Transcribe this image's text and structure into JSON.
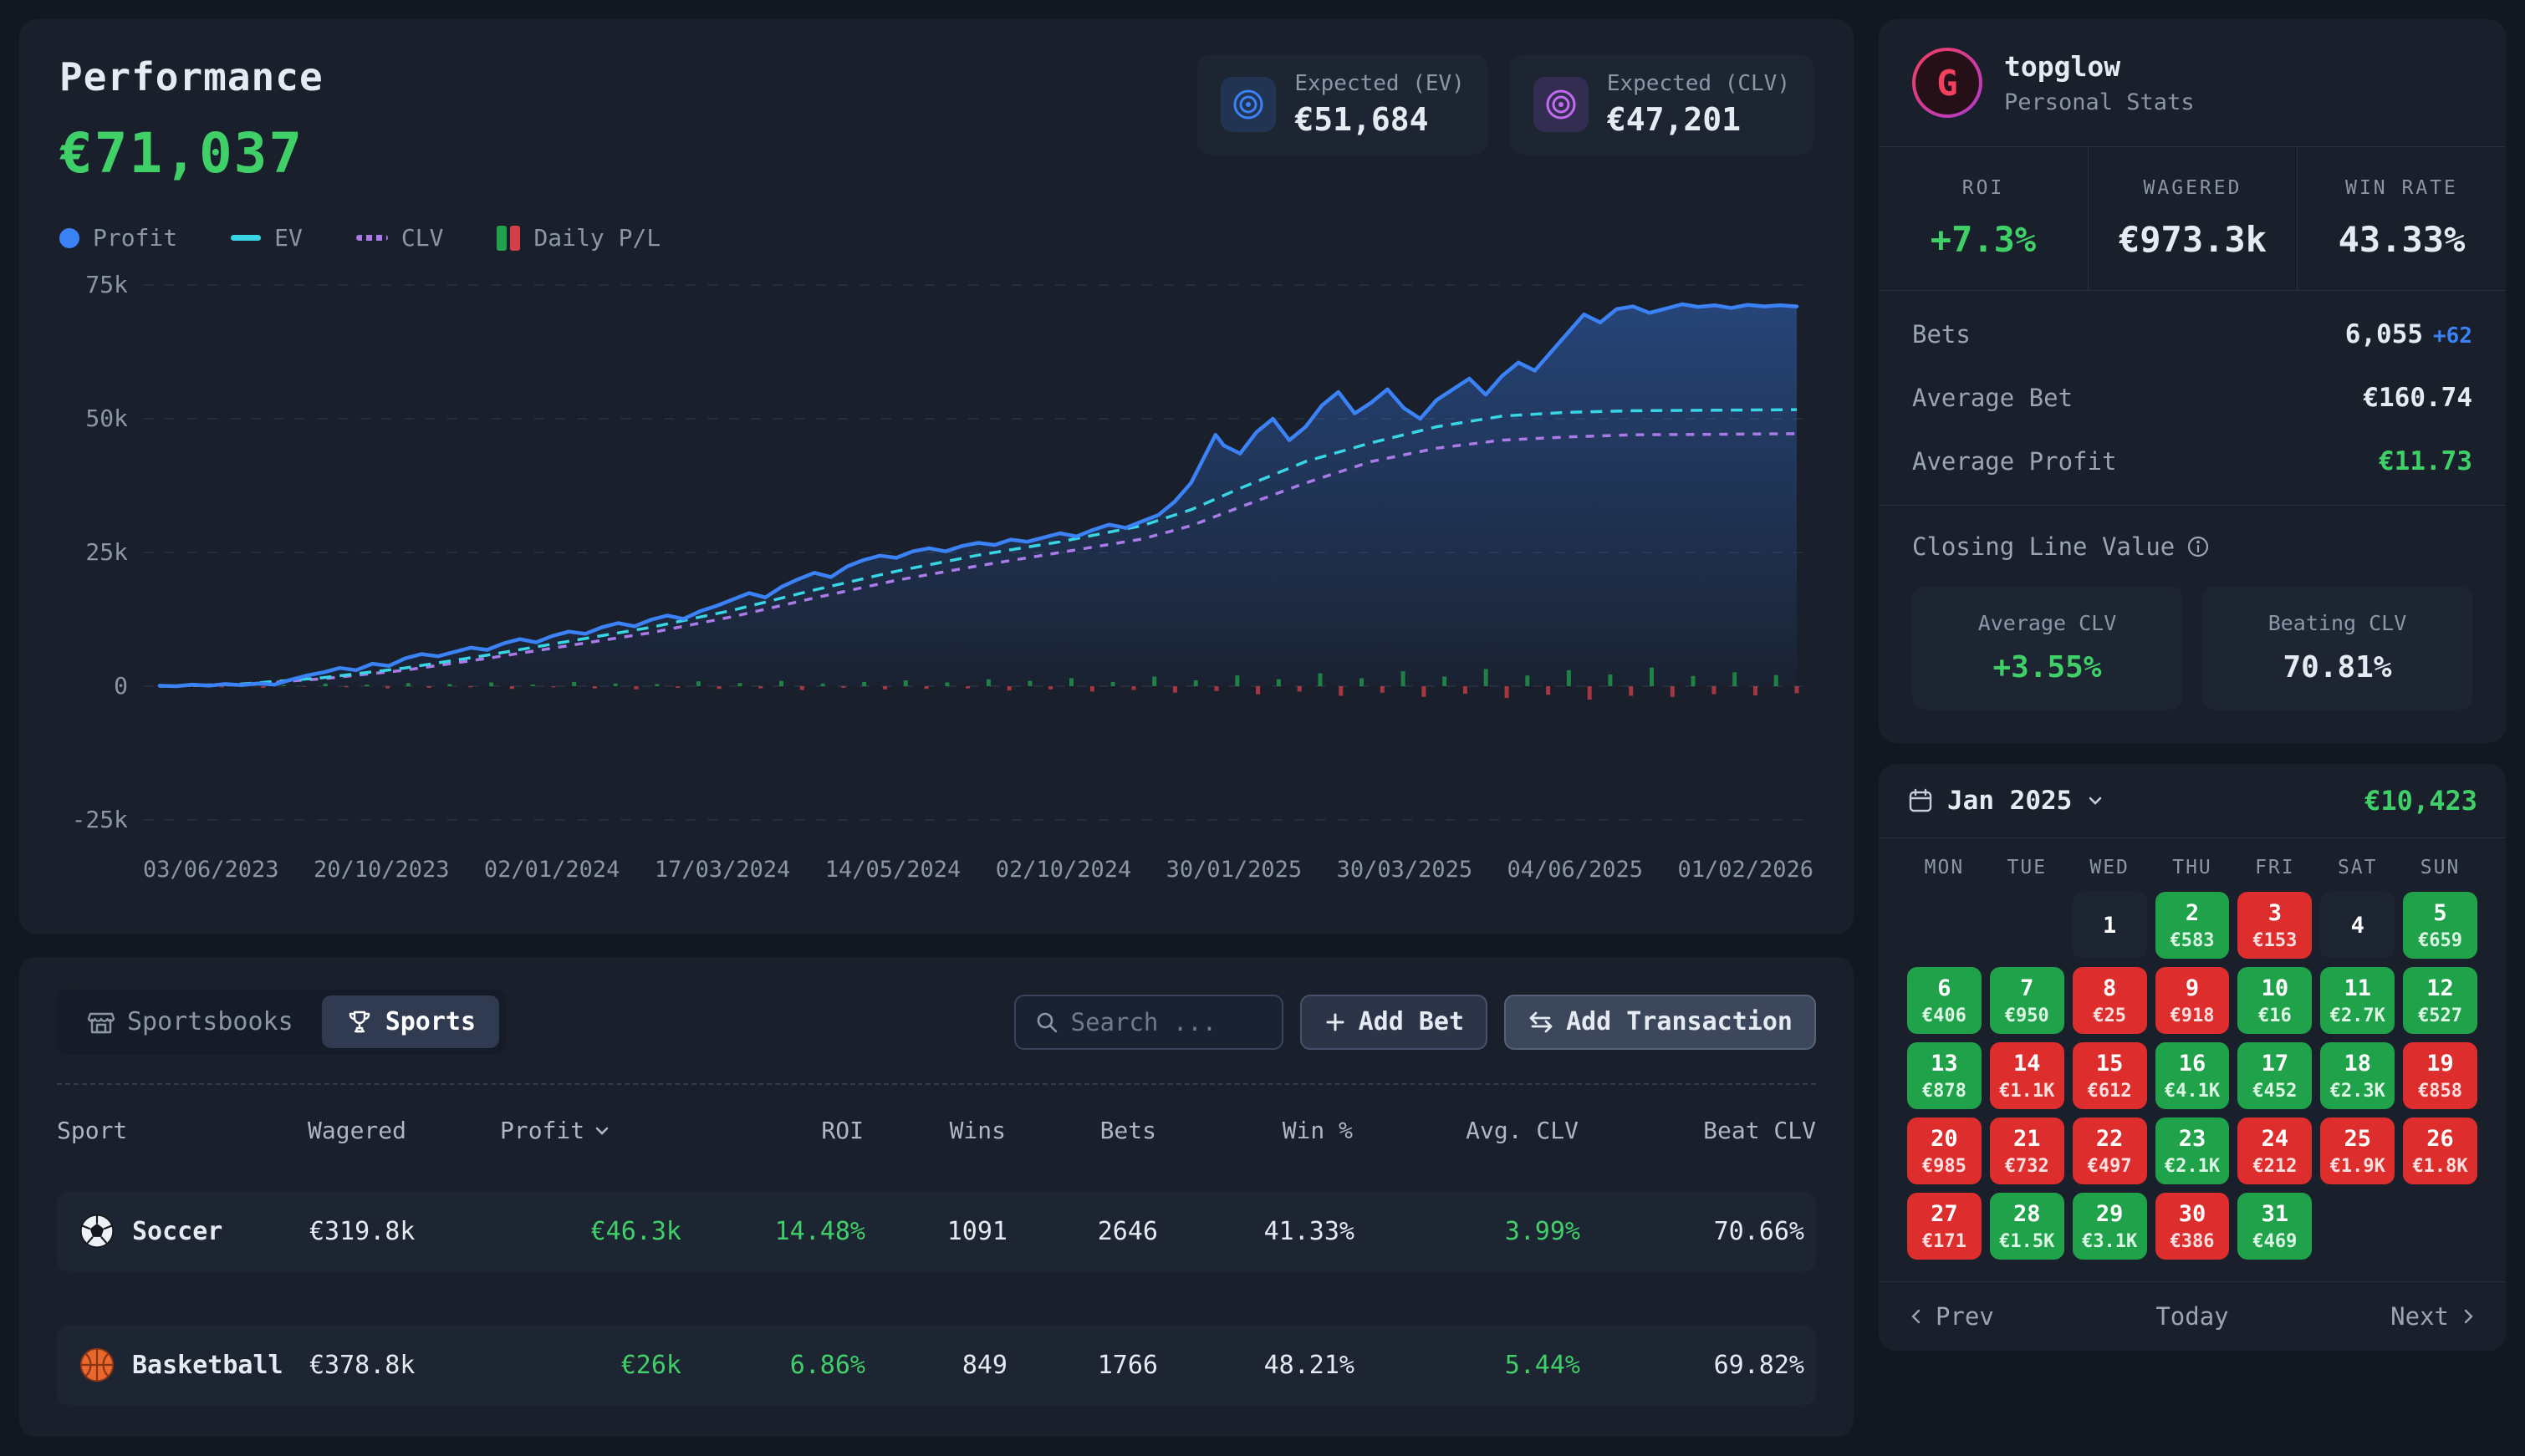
{
  "performance": {
    "title": "Performance",
    "total": "€71,037",
    "badges": {
      "ev": {
        "label": "Expected (EV)",
        "value": "€51,684"
      },
      "clv": {
        "label": "Expected (CLV)",
        "value": "€47,201"
      }
    },
    "legend": {
      "profit": "Profit",
      "ev": "EV",
      "clv": "CLV",
      "daily": "Daily P/L"
    }
  },
  "chart_data": {
    "type": "line",
    "title": "Performance cumulative profit",
    "units": "thousand EUR",
    "ylim_k": [
      -25,
      75
    ],
    "y_ticks": [
      {
        "label": "75k",
        "v": 75
      },
      {
        "label": "50k",
        "v": 50
      },
      {
        "label": "25k",
        "v": 25
      },
      {
        "label": "0",
        "v": 0
      },
      {
        "label": "-25k",
        "v": -25
      }
    ],
    "x_ticks": [
      "03/06/2023",
      "20/10/2023",
      "02/01/2024",
      "17/03/2024",
      "14/05/2024",
      "02/10/2024",
      "30/01/2025",
      "30/03/2025",
      "04/06/2025",
      "01/02/2026"
    ],
    "series": [
      {
        "name": "Profit",
        "color": "#3b82f6",
        "style": "solid",
        "points": [
          [
            0,
            0.1
          ],
          [
            0.01,
            0
          ],
          [
            0.02,
            0.3
          ],
          [
            0.03,
            0.1
          ],
          [
            0.04,
            0.4
          ],
          [
            0.05,
            0.2
          ],
          [
            0.06,
            0.5
          ],
          [
            0.07,
            0.3
          ],
          [
            0.08,
            1.2
          ],
          [
            0.09,
            2
          ],
          [
            0.1,
            2.6
          ],
          [
            0.11,
            3.4
          ],
          [
            0.12,
            3
          ],
          [
            0.13,
            4.2
          ],
          [
            0.14,
            3.8
          ],
          [
            0.15,
            5.2
          ],
          [
            0.16,
            6
          ],
          [
            0.17,
            5.6
          ],
          [
            0.18,
            6.4
          ],
          [
            0.19,
            7.2
          ],
          [
            0.2,
            6.8
          ],
          [
            0.21,
            8
          ],
          [
            0.22,
            8.8
          ],
          [
            0.23,
            8.2
          ],
          [
            0.24,
            9.4
          ],
          [
            0.25,
            10.2
          ],
          [
            0.26,
            9.8
          ],
          [
            0.27,
            11
          ],
          [
            0.28,
            11.8
          ],
          [
            0.29,
            11.2
          ],
          [
            0.3,
            12.4
          ],
          [
            0.31,
            13.2
          ],
          [
            0.32,
            12.6
          ],
          [
            0.33,
            14
          ],
          [
            0.34,
            15
          ],
          [
            0.35,
            16.2
          ],
          [
            0.36,
            17.4
          ],
          [
            0.37,
            16.6
          ],
          [
            0.38,
            18.6
          ],
          [
            0.39,
            20
          ],
          [
            0.4,
            21.2
          ],
          [
            0.41,
            20.4
          ],
          [
            0.42,
            22.4
          ],
          [
            0.43,
            23.6
          ],
          [
            0.44,
            24.4
          ],
          [
            0.45,
            24
          ],
          [
            0.46,
            25.2
          ],
          [
            0.47,
            25.8
          ],
          [
            0.48,
            25.2
          ],
          [
            0.49,
            26.2
          ],
          [
            0.5,
            26.8
          ],
          [
            0.51,
            26.4
          ],
          [
            0.52,
            27.4
          ],
          [
            0.53,
            27
          ],
          [
            0.54,
            27.8
          ],
          [
            0.55,
            28.6
          ],
          [
            0.56,
            28
          ],
          [
            0.57,
            29.2
          ],
          [
            0.58,
            30.2
          ],
          [
            0.59,
            29.6
          ],
          [
            0.6,
            30.8
          ],
          [
            0.61,
            32
          ],
          [
            0.62,
            34.5
          ],
          [
            0.63,
            38
          ],
          [
            0.64,
            44
          ],
          [
            0.645,
            47
          ],
          [
            0.65,
            45
          ],
          [
            0.66,
            43.5
          ],
          [
            0.67,
            47.5
          ],
          [
            0.68,
            50
          ],
          [
            0.69,
            46
          ],
          [
            0.7,
            48.5
          ],
          [
            0.71,
            52.5
          ],
          [
            0.72,
            55
          ],
          [
            0.73,
            51
          ],
          [
            0.74,
            53
          ],
          [
            0.75,
            55.5
          ],
          [
            0.76,
            52
          ],
          [
            0.77,
            50
          ],
          [
            0.78,
            53.5
          ],
          [
            0.79,
            55.5
          ],
          [
            0.8,
            57.5
          ],
          [
            0.81,
            54.5
          ],
          [
            0.82,
            58
          ],
          [
            0.83,
            60.5
          ],
          [
            0.84,
            59
          ],
          [
            0.85,
            62.5
          ],
          [
            0.86,
            66
          ],
          [
            0.87,
            69.5
          ],
          [
            0.88,
            68
          ],
          [
            0.89,
            70.5
          ],
          [
            0.9,
            71
          ],
          [
            0.91,
            69.8
          ],
          [
            0.92,
            70.6
          ],
          [
            0.93,
            71.4
          ],
          [
            0.94,
            70.9
          ],
          [
            0.95,
            71.2
          ],
          [
            0.96,
            70.7
          ],
          [
            0.97,
            71.3
          ],
          [
            0.98,
            71
          ],
          [
            0.99,
            71.2
          ],
          [
            1,
            71
          ]
        ]
      },
      {
        "name": "EV",
        "color": "#38d6e4",
        "style": "dashed",
        "points": [
          [
            0,
            0
          ],
          [
            0.05,
            0.4
          ],
          [
            0.1,
            1.6
          ],
          [
            0.15,
            3.4
          ],
          [
            0.2,
            5.8
          ],
          [
            0.25,
            8.4
          ],
          [
            0.3,
            11
          ],
          [
            0.35,
            14.2
          ],
          [
            0.4,
            18
          ],
          [
            0.45,
            21.5
          ],
          [
            0.5,
            24.5
          ],
          [
            0.55,
            27
          ],
          [
            0.6,
            30
          ],
          [
            0.63,
            33
          ],
          [
            0.66,
            37
          ],
          [
            0.7,
            42
          ],
          [
            0.74,
            45.5
          ],
          [
            0.78,
            48.5
          ],
          [
            0.82,
            50.5
          ],
          [
            0.86,
            51.2
          ],
          [
            0.9,
            51.5
          ],
          [
            0.95,
            51.6
          ],
          [
            1,
            51.7
          ]
        ]
      },
      {
        "name": "CLV",
        "color": "#a97ae8",
        "style": "dashed",
        "points": [
          [
            0,
            0
          ],
          [
            0.05,
            0.3
          ],
          [
            0.1,
            1.4
          ],
          [
            0.15,
            3
          ],
          [
            0.2,
            5.2
          ],
          [
            0.25,
            7.6
          ],
          [
            0.3,
            10
          ],
          [
            0.35,
            13
          ],
          [
            0.4,
            16.5
          ],
          [
            0.45,
            19.8
          ],
          [
            0.5,
            22.5
          ],
          [
            0.55,
            25
          ],
          [
            0.6,
            27.5
          ],
          [
            0.63,
            30
          ],
          [
            0.66,
            33.5
          ],
          [
            0.7,
            38
          ],
          [
            0.74,
            42
          ],
          [
            0.78,
            44.5
          ],
          [
            0.82,
            46
          ],
          [
            0.86,
            46.6
          ],
          [
            0.9,
            47
          ],
          [
            0.95,
            47.1
          ],
          [
            1,
            47.2
          ]
        ]
      }
    ],
    "daily_pl": {
      "name": "Daily P/L",
      "pos_color": "#22a24a",
      "neg_color": "#d3404a",
      "values_k": [
        0.2,
        -0.1,
        0.3,
        -0.2,
        0.4,
        -0.3,
        0.2,
        -0.1,
        0.5,
        -0.2,
        0.3,
        -0.4,
        0.6,
        -0.3,
        0.4,
        -0.2,
        0.7,
        -0.5,
        0.3,
        -0.2,
        0.8,
        -0.4,
        0.5,
        -0.6,
        0.4,
        -0.3,
        0.9,
        -0.5,
        0.6,
        -0.4,
        1.0,
        -0.7,
        0.5,
        -0.3,
        0.8,
        -0.6,
        1.1,
        -0.5,
        0.7,
        -0.4,
        1.3,
        -0.8,
        1.0,
        -0.6,
        1.5,
        -1.0,
        0.8,
        -0.7,
        1.8,
        -1.2,
        1.1,
        -0.9,
        2.0,
        -1.5,
        1.3,
        -1.0,
        2.4,
        -1.8,
        1.5,
        -1.2,
        2.8,
        -2.0,
        1.8,
        -1.4,
        3.2,
        -2.2,
        2.0,
        -1.6,
        3.0,
        -2.5,
        2.2,
        -1.8,
        3.5,
        -2.0,
        1.9,
        -1.5,
        2.6,
        -1.7,
        2.1,
        -1.3
      ]
    }
  },
  "toolbar": {
    "tabs": [
      {
        "label": "Sportsbooks"
      },
      {
        "label": "Sports"
      }
    ],
    "search_placeholder": "Search ...",
    "add_bet_label": "Add Bet",
    "add_transaction_label": "Add Transaction"
  },
  "table": {
    "columns": [
      "Sport",
      "Wagered",
      "Profit",
      "ROI",
      "Wins",
      "Bets",
      "Win %",
      "Avg. CLV",
      "Beat CLV"
    ],
    "sort_column": "Profit",
    "rows": [
      {
        "sport": "Soccer",
        "icon": "soccer-ball",
        "wagered": "€319.8k",
        "profit": "€46.3k",
        "roi": "14.48%",
        "wins": "1091",
        "bets": "2646",
        "win_pct": "41.33%",
        "avg_clv": "3.99%",
        "beat_clv": "70.66%"
      },
      {
        "sport": "Basketball",
        "icon": "basketball",
        "wagered": "€378.8k",
        "profit": "€26k",
        "roi": "6.86%",
        "wins": "849",
        "bets": "1766",
        "win_pct": "48.21%",
        "avg_clv": "5.44%",
        "beat_clv": "69.82%"
      }
    ]
  },
  "profile": {
    "username": "topglow",
    "subtitle": "Personal Stats",
    "avatar_letter": "G",
    "stats": [
      {
        "label": "ROI",
        "value": "+7.3%"
      },
      {
        "label": "WAGERED",
        "value": "€973.3k"
      },
      {
        "label": "WIN RATE",
        "value": "43.33%"
      }
    ],
    "rows": [
      {
        "label": "Bets",
        "value": "6,055",
        "extra": "+62"
      },
      {
        "label": "Average Bet",
        "value": "€160.74"
      },
      {
        "label": "Average Profit",
        "value": "€11.73"
      }
    ],
    "clv_section": {
      "title": "Closing Line Value",
      "cards": [
        {
          "label": "Average CLV",
          "value": "+3.55%"
        },
        {
          "label": "Beating CLV",
          "value": "70.81%"
        }
      ]
    }
  },
  "calendar": {
    "month": "Jan 2025",
    "total": "€10,423",
    "day_headers": [
      "MON",
      "TUE",
      "WED",
      "THU",
      "FRI",
      "SAT",
      "SUN"
    ],
    "days": [
      {
        "d": null
      },
      {
        "d": null
      },
      {
        "d": 1,
        "t": "none"
      },
      {
        "d": 2,
        "v": "€583",
        "t": "pos"
      },
      {
        "d": 3,
        "v": "€153",
        "t": "neg"
      },
      {
        "d": 4,
        "t": "none"
      },
      {
        "d": 5,
        "v": "€659",
        "t": "pos"
      },
      {
        "d": 6,
        "v": "€406",
        "t": "pos"
      },
      {
        "d": 7,
        "v": "€950",
        "t": "pos"
      },
      {
        "d": 8,
        "v": "€25",
        "t": "neg"
      },
      {
        "d": 9,
        "v": "€918",
        "t": "neg"
      },
      {
        "d": 10,
        "v": "€16",
        "t": "pos"
      },
      {
        "d": 11,
        "v": "€2.7K",
        "t": "pos"
      },
      {
        "d": 12,
        "v": "€527",
        "t": "pos"
      },
      {
        "d": 13,
        "v": "€878",
        "t": "pos"
      },
      {
        "d": 14,
        "v": "€1.1K",
        "t": "neg"
      },
      {
        "d": 15,
        "v": "€612",
        "t": "neg"
      },
      {
        "d": 16,
        "v": "€4.1K",
        "t": "pos"
      },
      {
        "d": 17,
        "v": "€452",
        "t": "pos"
      },
      {
        "d": 18,
        "v": "€2.3K",
        "t": "pos"
      },
      {
        "d": 19,
        "v": "€858",
        "t": "neg"
      },
      {
        "d": 20,
        "v": "€985",
        "t": "neg"
      },
      {
        "d": 21,
        "v": "€732",
        "t": "neg"
      },
      {
        "d": 22,
        "v": "€497",
        "t": "neg"
      },
      {
        "d": 23,
        "v": "€2.1K",
        "t": "pos"
      },
      {
        "d": 24,
        "v": "€212",
        "t": "neg"
      },
      {
        "d": 25,
        "v": "€1.9K",
        "t": "neg"
      },
      {
        "d": 26,
        "v": "€1.8K",
        "t": "neg"
      },
      {
        "d": 27,
        "v": "€171",
        "t": "neg"
      },
      {
        "d": 28,
        "v": "€1.5K",
        "t": "pos"
      },
      {
        "d": 29,
        "v": "€3.1K",
        "t": "pos"
      },
      {
        "d": 30,
        "v": "€386",
        "t": "neg"
      },
      {
        "d": 31,
        "v": "€469",
        "t": "pos"
      },
      {
        "d": null
      },
      {
        "d": null
      }
    ],
    "footer": {
      "prev": "Prev",
      "today": "Today",
      "next": "Next"
    }
  },
  "colors": {
    "accent_green": "#3fd068",
    "calendar_green": "#1fa24a",
    "calendar_red": "#dd2d2d",
    "profit_blue": "#3b82f6",
    "ev_cyan": "#38d6e4",
    "clv_purple": "#a97ae8"
  }
}
